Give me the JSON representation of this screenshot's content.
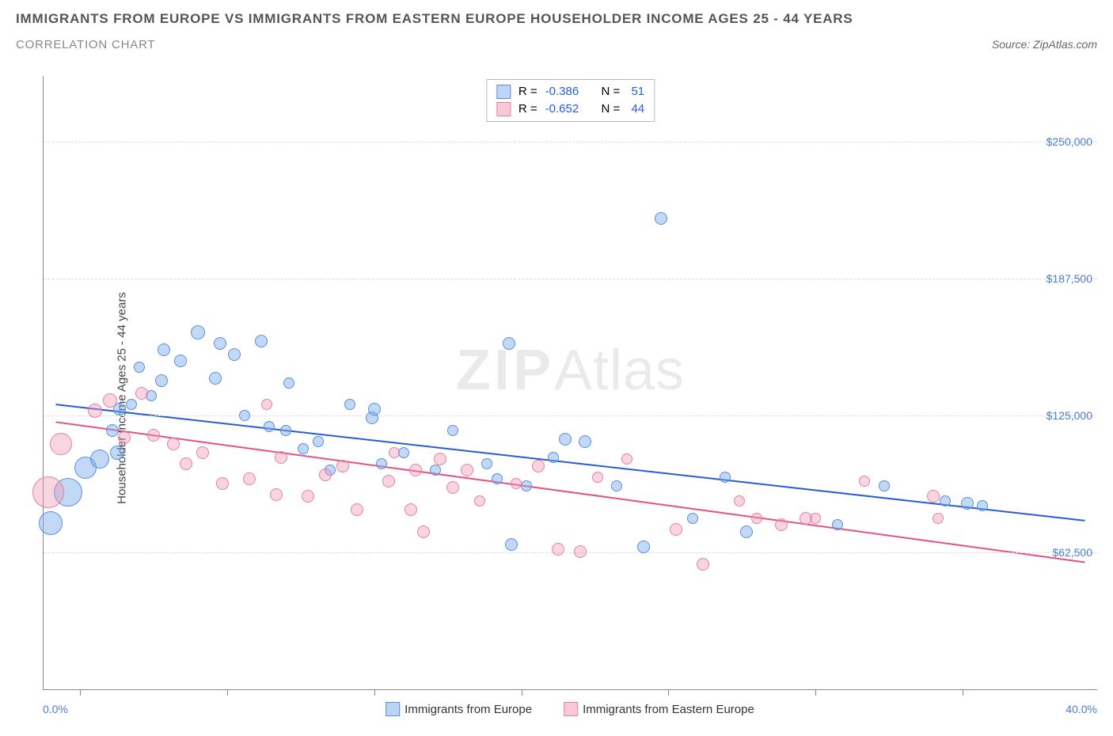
{
  "header": {
    "title": "IMMIGRANTS FROM EUROPE VS IMMIGRANTS FROM EASTERN EUROPE HOUSEHOLDER INCOME AGES 25 - 44 YEARS",
    "subtitle": "CORRELATION CHART",
    "source_prefix": "Source:",
    "source_name": "ZipAtlas.com"
  },
  "chart": {
    "type": "scatter",
    "y_axis_title": "Householder Income Ages 25 - 44 years",
    "watermark_bold": "ZIP",
    "watermark_rest": "Atlas",
    "xlim": [
      -1.5,
      41.5
    ],
    "ylim": [
      0,
      280000
    ],
    "x_tick_positions": [
      0,
      6,
      12,
      18,
      24,
      30,
      36
    ],
    "x_min_label": "0.0%",
    "x_max_label": "40.0%",
    "y_gridlines": [
      62500,
      125000,
      187500,
      250000
    ],
    "y_tick_labels": [
      "$62,500",
      "$125,000",
      "$187,500",
      "$250,000"
    ],
    "background_color": "#ffffff",
    "grid_color": "#dddddd",
    "axis_color": "#888888",
    "y_tick_text_color": "#4a7bd8",
    "stats": [
      {
        "swatch_fill": "#bcd5f5",
        "swatch_border": "#5b8ee0",
        "r_label": "R =",
        "r_value": "-0.386",
        "n_label": "N =",
        "n_value": "51"
      },
      {
        "swatch_fill": "#f7c8d6",
        "swatch_border": "#e77fa3",
        "r_label": "R =",
        "r_value": "-0.652",
        "n_label": "N =",
        "n_value": "44"
      }
    ],
    "legend": [
      {
        "label": "Immigrants from Europe",
        "swatch_fill": "#bcd5f5",
        "swatch_border": "#5b8ee0"
      },
      {
        "label": "Immigrants from Eastern Europe",
        "swatch_fill": "#f7c8d6",
        "swatch_border": "#e77fa3"
      }
    ],
    "series": [
      {
        "name": "Immigrants from Europe",
        "fill": "rgba(120,170,235,0.45)",
        "stroke": "#5b8ee0",
        "trend_color": "#2a5bd7",
        "trend_width": 2,
        "trend": {
          "x1": -1.0,
          "y1": 130000,
          "x2": 41.0,
          "y2": 77000
        },
        "points": [
          {
            "x": -1.2,
            "y": 76000,
            "r": 15
          },
          {
            "x": -0.5,
            "y": 90000,
            "r": 18
          },
          {
            "x": 0.2,
            "y": 101000,
            "r": 14
          },
          {
            "x": 0.8,
            "y": 105000,
            "r": 12
          },
          {
            "x": 1.3,
            "y": 118000,
            "r": 8
          },
          {
            "x": 1.6,
            "y": 128000,
            "r": 8
          },
          {
            "x": 1.5,
            "y": 108000,
            "r": 9
          },
          {
            "x": 2.1,
            "y": 130000,
            "r": 7
          },
          {
            "x": 2.4,
            "y": 147000,
            "r": 7
          },
          {
            "x": 2.9,
            "y": 134000,
            "r": 7
          },
          {
            "x": 3.3,
            "y": 141000,
            "r": 8
          },
          {
            "x": 3.4,
            "y": 155000,
            "r": 8
          },
          {
            "x": 4.1,
            "y": 150000,
            "r": 8
          },
          {
            "x": 4.8,
            "y": 163000,
            "r": 9
          },
          {
            "x": 5.5,
            "y": 142000,
            "r": 8
          },
          {
            "x": 5.7,
            "y": 158000,
            "r": 8
          },
          {
            "x": 6.3,
            "y": 153000,
            "r": 8
          },
          {
            "x": 6.7,
            "y": 125000,
            "r": 7
          },
          {
            "x": 7.4,
            "y": 159000,
            "r": 8
          },
          {
            "x": 7.7,
            "y": 120000,
            "r": 7
          },
          {
            "x": 8.4,
            "y": 118000,
            "r": 7
          },
          {
            "x": 8.5,
            "y": 140000,
            "r": 7
          },
          {
            "x": 9.1,
            "y": 110000,
            "r": 7
          },
          {
            "x": 9.7,
            "y": 113000,
            "r": 7
          },
          {
            "x": 10.2,
            "y": 100000,
            "r": 7
          },
          {
            "x": 11.0,
            "y": 130000,
            "r": 7
          },
          {
            "x": 11.9,
            "y": 124000,
            "r": 8
          },
          {
            "x": 12.0,
            "y": 128000,
            "r": 8
          },
          {
            "x": 12.3,
            "y": 103000,
            "r": 7
          },
          {
            "x": 13.2,
            "y": 108000,
            "r": 7
          },
          {
            "x": 14.5,
            "y": 100000,
            "r": 7
          },
          {
            "x": 15.2,
            "y": 118000,
            "r": 7
          },
          {
            "x": 16.6,
            "y": 103000,
            "r": 7
          },
          {
            "x": 17.0,
            "y": 96000,
            "r": 7
          },
          {
            "x": 17.5,
            "y": 158000,
            "r": 8
          },
          {
            "x": 17.6,
            "y": 66000,
            "r": 8
          },
          {
            "x": 18.2,
            "y": 93000,
            "r": 7
          },
          {
            "x": 19.3,
            "y": 106000,
            "r": 7
          },
          {
            "x": 19.8,
            "y": 114000,
            "r": 8
          },
          {
            "x": 20.6,
            "y": 113000,
            "r": 8
          },
          {
            "x": 21.9,
            "y": 93000,
            "r": 7
          },
          {
            "x": 23.0,
            "y": 65000,
            "r": 8
          },
          {
            "x": 23.7,
            "y": 215000,
            "r": 8
          },
          {
            "x": 25.0,
            "y": 78000,
            "r": 7
          },
          {
            "x": 26.3,
            "y": 97000,
            "r": 7
          },
          {
            "x": 27.2,
            "y": 72000,
            "r": 8
          },
          {
            "x": 32.8,
            "y": 93000,
            "r": 7
          },
          {
            "x": 35.3,
            "y": 86000,
            "r": 7
          },
          {
            "x": 36.2,
            "y": 85000,
            "r": 8
          },
          {
            "x": 36.8,
            "y": 84000,
            "r": 7
          },
          {
            "x": 30.9,
            "y": 75000,
            "r": 7
          }
        ]
      },
      {
        "name": "Immigrants from Eastern Europe",
        "fill": "rgba(240,150,180,0.40)",
        "stroke": "#e77fa3",
        "trend_color": "#e4537f",
        "trend_width": 2,
        "trend": {
          "x1": -1.0,
          "y1": 122000,
          "x2": 41.0,
          "y2": 58000
        },
        "points": [
          {
            "x": -1.3,
            "y": 90000,
            "r": 20
          },
          {
            "x": -0.8,
            "y": 112000,
            "r": 14
          },
          {
            "x": 0.6,
            "y": 127000,
            "r": 9
          },
          {
            "x": 1.2,
            "y": 132000,
            "r": 9
          },
          {
            "x": 1.8,
            "y": 115000,
            "r": 8
          },
          {
            "x": 2.5,
            "y": 135000,
            "r": 8
          },
          {
            "x": 3.0,
            "y": 116000,
            "r": 8
          },
          {
            "x": 3.8,
            "y": 112000,
            "r": 8
          },
          {
            "x": 4.3,
            "y": 103000,
            "r": 8
          },
          {
            "x": 5.0,
            "y": 108000,
            "r": 8
          },
          {
            "x": 5.8,
            "y": 94000,
            "r": 8
          },
          {
            "x": 6.9,
            "y": 96000,
            "r": 8
          },
          {
            "x": 7.6,
            "y": 130000,
            "r": 7
          },
          {
            "x": 8.0,
            "y": 89000,
            "r": 8
          },
          {
            "x": 8.2,
            "y": 106000,
            "r": 8
          },
          {
            "x": 9.3,
            "y": 88000,
            "r": 8
          },
          {
            "x": 10.0,
            "y": 98000,
            "r": 8
          },
          {
            "x": 10.7,
            "y": 102000,
            "r": 8
          },
          {
            "x": 11.3,
            "y": 82000,
            "r": 8
          },
          {
            "x": 12.6,
            "y": 95000,
            "r": 8
          },
          {
            "x": 12.8,
            "y": 108000,
            "r": 7
          },
          {
            "x": 13.5,
            "y": 82000,
            "r": 8
          },
          {
            "x": 13.7,
            "y": 100000,
            "r": 8
          },
          {
            "x": 14.0,
            "y": 72000,
            "r": 8
          },
          {
            "x": 14.7,
            "y": 105000,
            "r": 8
          },
          {
            "x": 15.2,
            "y": 92000,
            "r": 8
          },
          {
            "x": 15.8,
            "y": 100000,
            "r": 8
          },
          {
            "x": 16.3,
            "y": 86000,
            "r": 7
          },
          {
            "x": 17.8,
            "y": 94000,
            "r": 7
          },
          {
            "x": 18.7,
            "y": 102000,
            "r": 8
          },
          {
            "x": 19.5,
            "y": 64000,
            "r": 8
          },
          {
            "x": 20.4,
            "y": 63000,
            "r": 8
          },
          {
            "x": 21.1,
            "y": 97000,
            "r": 7
          },
          {
            "x": 22.3,
            "y": 105000,
            "r": 7
          },
          {
            "x": 24.3,
            "y": 73000,
            "r": 8
          },
          {
            "x": 25.4,
            "y": 57000,
            "r": 8
          },
          {
            "x": 26.9,
            "y": 86000,
            "r": 7
          },
          {
            "x": 28.6,
            "y": 75000,
            "r": 8
          },
          {
            "x": 29.6,
            "y": 78000,
            "r": 8
          },
          {
            "x": 30.0,
            "y": 78000,
            "r": 7
          },
          {
            "x": 32.0,
            "y": 95000,
            "r": 7
          },
          {
            "x": 34.8,
            "y": 88000,
            "r": 8
          },
          {
            "x": 35.0,
            "y": 78000,
            "r": 7
          },
          {
            "x": 27.6,
            "y": 78000,
            "r": 7
          }
        ]
      }
    ]
  }
}
